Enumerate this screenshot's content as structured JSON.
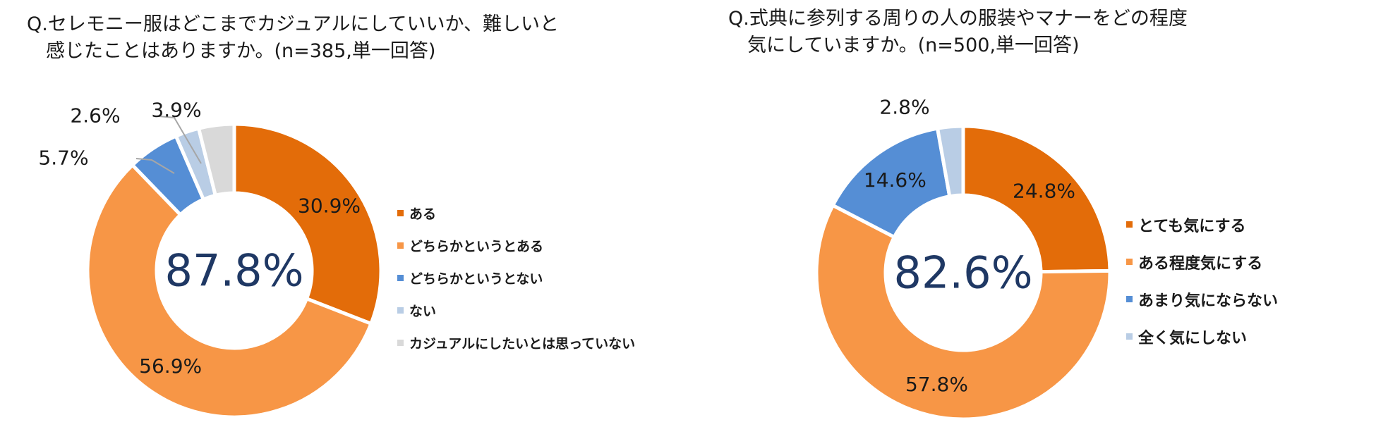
{
  "colors": {
    "dark_orange": "#E36C09",
    "light_orange": "#F79646",
    "blue": "#558ED5",
    "light_blue": "#B9CDE5",
    "gray": "#D9D9D9",
    "center_text": "#1F3864",
    "leader_line": "#A6A6A6"
  },
  "chart_data": [
    {
      "type": "pie",
      "variant": "donut",
      "title": "Q.セレモニー服はどこまでカジュアルにしていいか、難しいと\n　感じたことはありますか。(n=385,単一回答)",
      "center_label": "87.8%",
      "legend_position": "right",
      "slices": [
        {
          "label": "ある",
          "value": 30.9,
          "value_label": "30.9%",
          "color": "#E36C09"
        },
        {
          "label": "どちらかというとある",
          "value": 56.9,
          "value_label": "56.9%",
          "color": "#F79646"
        },
        {
          "label": "どちらかというとない",
          "value": 5.7,
          "value_label": "5.7%",
          "color": "#558ED5"
        },
        {
          "label": "ない",
          "value": 2.6,
          "value_label": "2.6%",
          "color": "#B9CDE5"
        },
        {
          "label": "カジュアルにしたいとは思っていない",
          "value": 3.9,
          "value_label": "3.9%",
          "color": "#D9D9D9"
        }
      ]
    },
    {
      "type": "pie",
      "variant": "donut",
      "title": "Q.式典に参列する周りの人の服装やマナーをどの程度\n　気にしていますか。(n=500,単一回答)",
      "center_label": "82.6%",
      "legend_position": "right",
      "slices": [
        {
          "label": "とても気にする",
          "value": 24.8,
          "value_label": "24.8%",
          "color": "#E36C09"
        },
        {
          "label": "ある程度気にする",
          "value": 57.8,
          "value_label": "57.8%",
          "color": "#F79646"
        },
        {
          "label": "あまり気にならない",
          "value": 14.6,
          "value_label": "14.6%",
          "color": "#558ED5"
        },
        {
          "label": "全く気にしない",
          "value": 2.8,
          "value_label": "2.8%",
          "color": "#B9CDE5"
        }
      ]
    }
  ]
}
